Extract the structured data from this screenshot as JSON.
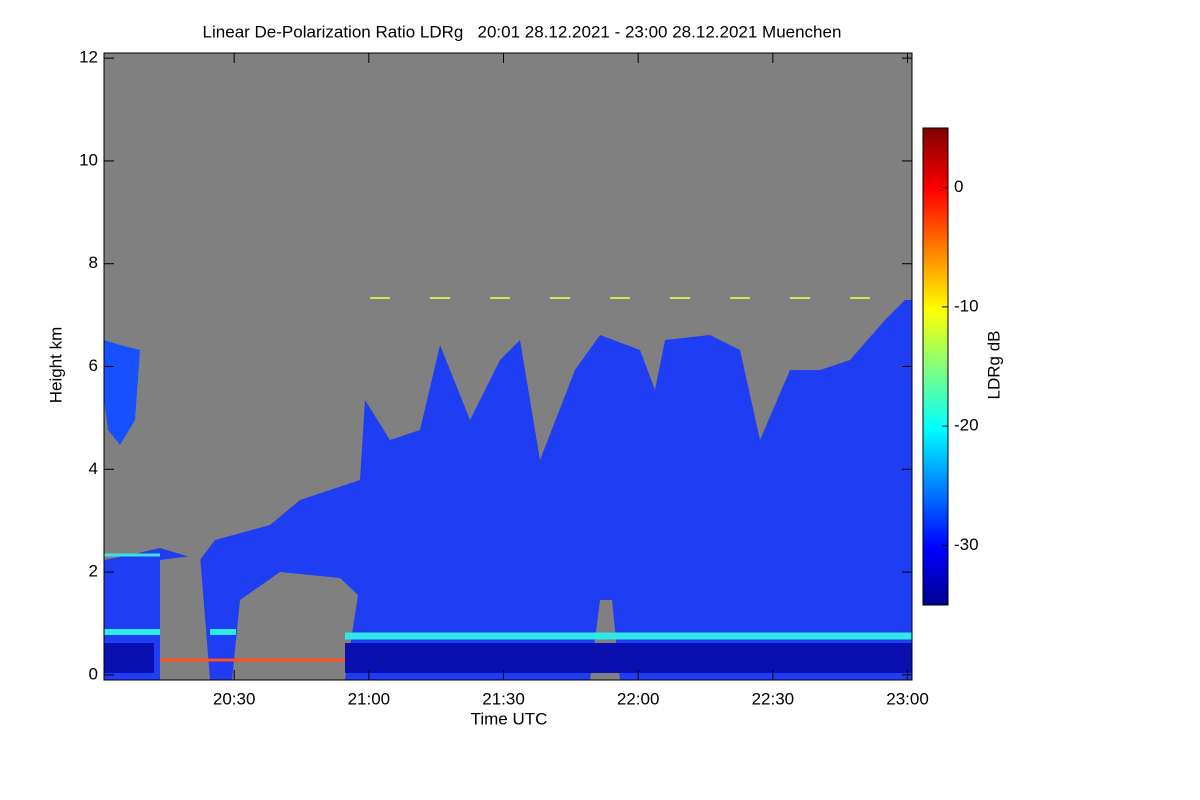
{
  "chart_data": {
    "type": "heatmap",
    "title": "Linear De-Polarization Ratio LDRg   20:01 28.12.2021 - 23:00 28.12.2021 Muenchen",
    "xlabel": "Time UTC",
    "ylabel": "Height km",
    "xlim": [
      1201,
      1381
    ],
    "xticks": [
      {
        "value": 1230,
        "label": "20:30"
      },
      {
        "value": 1260,
        "label": "21:00"
      },
      {
        "value": 1290,
        "label": "21:30"
      },
      {
        "value": 1320,
        "label": "22:00"
      },
      {
        "value": 1350,
        "label": "22:30"
      },
      {
        "value": 1380,
        "label": "23:00"
      }
    ],
    "ylim": [
      -0.1,
      12.1
    ],
    "yticks": [
      0,
      2,
      4,
      6,
      8,
      10,
      12
    ],
    "colorbar": {
      "label": "LDRg dB",
      "lim": [
        -35,
        5
      ],
      "ticks": [
        0,
        -10,
        -20,
        -30
      ]
    }
  }
}
